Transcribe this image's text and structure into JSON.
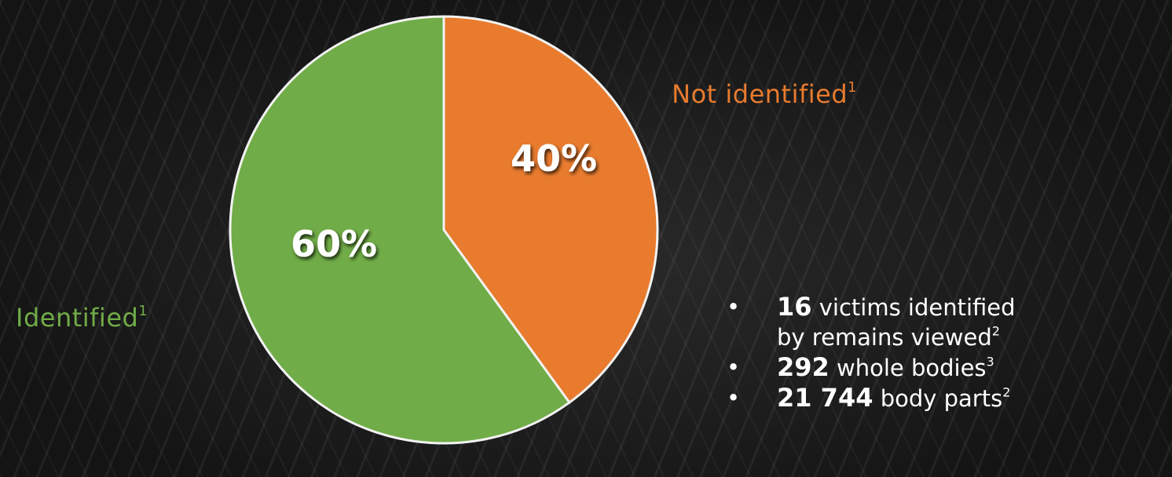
{
  "chart_data": {
    "type": "pie",
    "slices": [
      {
        "label": "Not identified",
        "footnote": "1",
        "value": 40,
        "display": "40%",
        "color": "#e87b2e"
      },
      {
        "label": "Identified",
        "footnote": "1",
        "value": 60,
        "display": "60%",
        "color": "#70ac47"
      }
    ],
    "start": "12 o'clock",
    "direction": "clockwise",
    "border_color": "#f2f2f2"
  },
  "stats": [
    {
      "bullet": "•",
      "number": "16",
      "text": "victims identified",
      "continuation": "by remains viewed",
      "footnote": "2"
    },
    {
      "bullet": "•",
      "number": "292",
      "text": "whole bodies",
      "footnote": "3"
    },
    {
      "bullet": "•",
      "number": "21 744",
      "text": "body parts",
      "footnote": "2"
    }
  ]
}
